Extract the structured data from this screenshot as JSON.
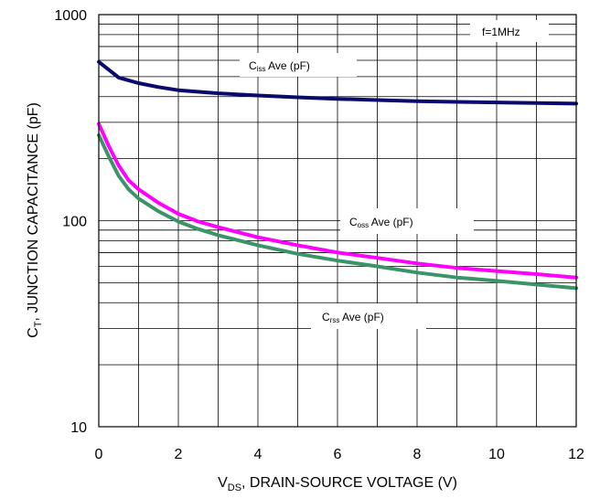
{
  "chart_data": {
    "type": "line",
    "xlabel_main": "V",
    "xlabel_sub": "DS",
    "xlabel_rest": ", DRAIN-SOURCE VOLTAGE (V)",
    "ylabel_main": "C",
    "ylabel_sub": "T",
    "ylabel_rest": ", JUNCTION CAPACITANCE (pF)",
    "xlim": [
      0,
      12
    ],
    "ylim": [
      10,
      1000
    ],
    "yscale": "log",
    "grid": true,
    "x_ticks": [
      "0",
      "2",
      "4",
      "6",
      "8",
      "10",
      "12"
    ],
    "y_ticks": [
      "10",
      "100",
      "1000"
    ],
    "annotation": "f=1MHz",
    "series": [
      {
        "name_main": "C",
        "name_sub": "iss",
        "name_rest": " Ave (pF)",
        "color": "#0a0a6e",
        "x": [
          0,
          0.25,
          0.5,
          1,
          1.5,
          2,
          3,
          4,
          5,
          6,
          7,
          8,
          9,
          10,
          11,
          12
        ],
        "y": [
          590,
          540,
          495,
          465,
          445,
          430,
          415,
          405,
          397,
          390,
          385,
          380,
          377,
          375,
          372,
          370
        ]
      },
      {
        "name_main": "C",
        "name_sub": "oss",
        "name_rest": " Ave (pF)",
        "color": "#ff00ff",
        "x": [
          0,
          0.25,
          0.5,
          0.75,
          1,
          1.5,
          2,
          2.5,
          3,
          4,
          5,
          6,
          7,
          8,
          9,
          10,
          11,
          12
        ],
        "y": [
          295,
          230,
          185,
          157,
          142,
          122,
          108,
          99,
          93,
          83,
          76,
          70,
          66,
          62,
          59,
          57,
          55,
          53
        ]
      },
      {
        "name_main": "C",
        "name_sub": "rss",
        "name_rest": " Ave (pF)",
        "color": "#3a9468",
        "x": [
          0,
          0.25,
          0.5,
          0.75,
          1,
          1.5,
          2,
          2.5,
          3,
          4,
          5,
          6,
          7,
          8,
          9,
          10,
          11,
          12
        ],
        "y": [
          260,
          205,
          165,
          142,
          128,
          111,
          99,
          91,
          85,
          76,
          69,
          64,
          60,
          56,
          53,
          51,
          49,
          47
        ]
      }
    ]
  }
}
